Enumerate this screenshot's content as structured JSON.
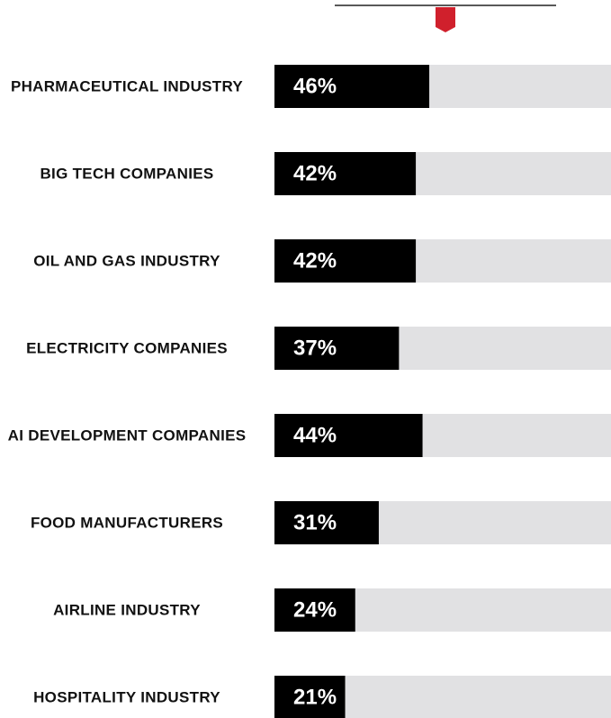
{
  "chart_data": {
    "type": "bar",
    "orientation": "horizontal",
    "categories": [
      "PHARMACEUTICAL INDUSTRY",
      "BIG TECH COMPANIES",
      "OIL AND GAS INDUSTRY",
      "ELECTRICITY COMPANIES",
      "AI DEVELOPMENT COMPANIES",
      "FOOD MANUFACTURERS",
      "AIRLINE INDUSTRY",
      "HOSPITALITY INDUSTRY"
    ],
    "values": [
      46,
      42,
      42,
      37,
      44,
      31,
      24,
      21
    ],
    "value_labels": [
      "46%",
      "42%",
      "42%",
      "37%",
      "44%",
      "31%",
      "24%",
      "21%"
    ],
    "color": "#000000",
    "track_color": "#e1e1e3",
    "xlim": [
      0,
      100
    ]
  }
}
